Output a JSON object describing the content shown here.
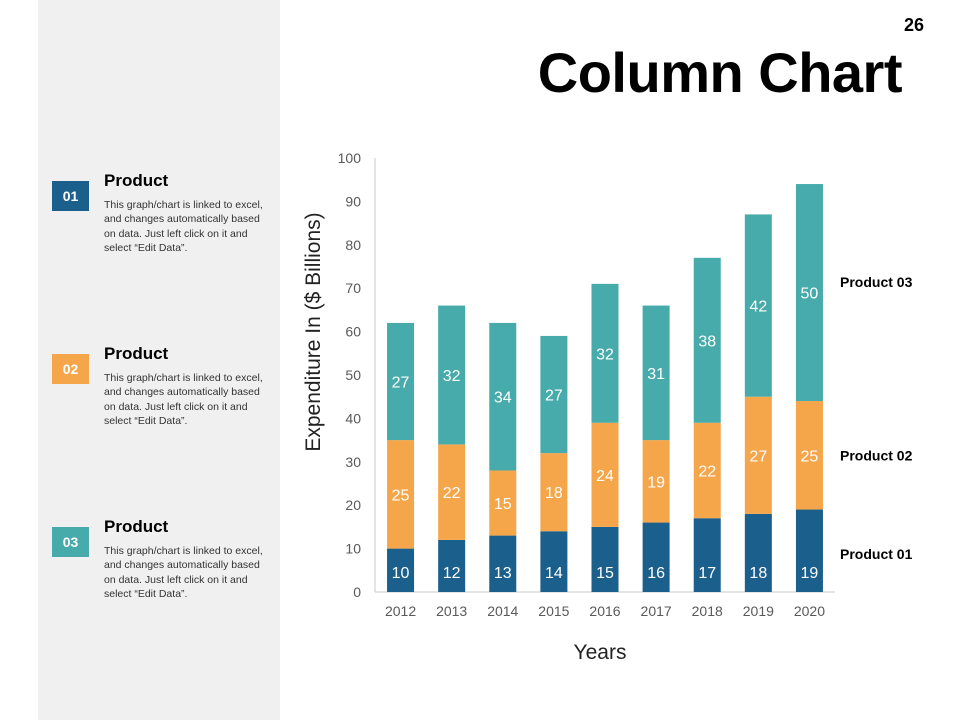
{
  "page_number": "26",
  "title": "Column Chart",
  "sidebar": {
    "items": [
      {
        "badge": "01",
        "heading": "Product",
        "text": "This graph/chart is linked to excel, and changes automatically based on data. Just left click on it and select “Edit Data”.",
        "color": "#1b5f8c"
      },
      {
        "badge": "02",
        "heading": "Product",
        "text": "This graph/chart is linked to excel, and changes automatically based on data. Just left click on it and select “Edit Data”.",
        "color": "#f5a64a"
      },
      {
        "badge": "03",
        "heading": "Product",
        "text": "This graph/chart is linked to excel, and changes automatically based on data. Just left click on it and select “Edit Data”.",
        "color": "#46abaa"
      }
    ]
  },
  "chart_data": {
    "type": "bar",
    "stacked": true,
    "categories": [
      "2012",
      "2013",
      "2014",
      "2015",
      "2016",
      "2017",
      "2018",
      "2019",
      "2020"
    ],
    "series": [
      {
        "name": "Product 01",
        "values": [
          10,
          12,
          13,
          14,
          15,
          16,
          17,
          18,
          19
        ],
        "color": "#1b5f8c"
      },
      {
        "name": "Product 02",
        "values": [
          25,
          22,
          15,
          18,
          24,
          19,
          22,
          27,
          25
        ],
        "color": "#f5a64a"
      },
      {
        "name": "Product 03",
        "values": [
          27,
          32,
          34,
          27,
          32,
          31,
          38,
          42,
          50
        ],
        "color": "#46abaa"
      }
    ],
    "ylim": [
      0,
      100
    ],
    "yticks": [
      "0",
      "10",
      "20",
      "30",
      "40",
      "50",
      "60",
      "70",
      "80",
      "90",
      "100"
    ],
    "xlabel": "Years",
    "ylabel": "Expenditure In ($ Billions)",
    "legend_position": "right"
  }
}
